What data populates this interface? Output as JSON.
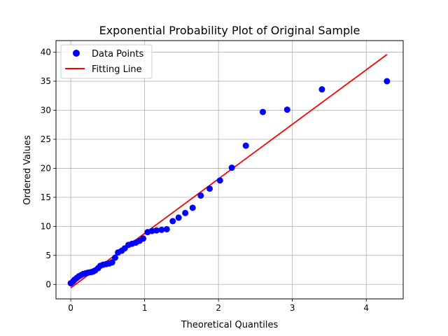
{
  "chart_data": {
    "type": "scatter",
    "title": "Exponential Probability Plot of Original Sample",
    "xlabel": "Theoretical Quantiles",
    "ylabel": "Ordered Values",
    "xlim": [
      -0.2,
      4.5
    ],
    "ylim": [
      -2.5,
      42
    ],
    "xticks": [
      0,
      1,
      2,
      3,
      4
    ],
    "yticks": [
      0,
      5,
      10,
      15,
      20,
      25,
      30,
      35,
      40
    ],
    "grid": true,
    "legend_position": "top-left",
    "series": [
      {
        "name": "Data Points",
        "kind": "scatter",
        "color": "#0000ff",
        "x": [
          0.0,
          0.03,
          0.05,
          0.08,
          0.11,
          0.14,
          0.17,
          0.2,
          0.23,
          0.27,
          0.3,
          0.33,
          0.37,
          0.4,
          0.44,
          0.48,
          0.52,
          0.56,
          0.6,
          0.64,
          0.69,
          0.73,
          0.78,
          0.83,
          0.88,
          0.93,
          0.98,
          1.04,
          1.1,
          1.16,
          1.23,
          1.3,
          1.38,
          1.46,
          1.55,
          1.65,
          1.76,
          1.88,
          2.02,
          2.18,
          2.37,
          2.6,
          2.93,
          3.4,
          4.28
        ],
        "y": [
          0.2,
          0.5,
          0.8,
          1.1,
          1.4,
          1.6,
          1.8,
          1.9,
          2.0,
          2.1,
          2.2,
          2.4,
          2.8,
          3.2,
          3.4,
          3.5,
          3.6,
          3.8,
          4.6,
          5.5,
          5.8,
          6.2,
          6.8,
          7.0,
          7.2,
          7.5,
          7.9,
          9.0,
          9.2,
          9.3,
          9.4,
          9.5,
          10.9,
          11.5,
          12.3,
          13.2,
          15.3,
          16.5,
          17.9,
          20.1,
          23.9,
          29.7,
          30.1,
          33.6,
          35.0
        ]
      },
      {
        "name": "Fitting Line",
        "kind": "line",
        "color": "#ff0000",
        "x": [
          0.0,
          4.28
        ],
        "y": [
          -0.6,
          39.6
        ]
      }
    ]
  }
}
